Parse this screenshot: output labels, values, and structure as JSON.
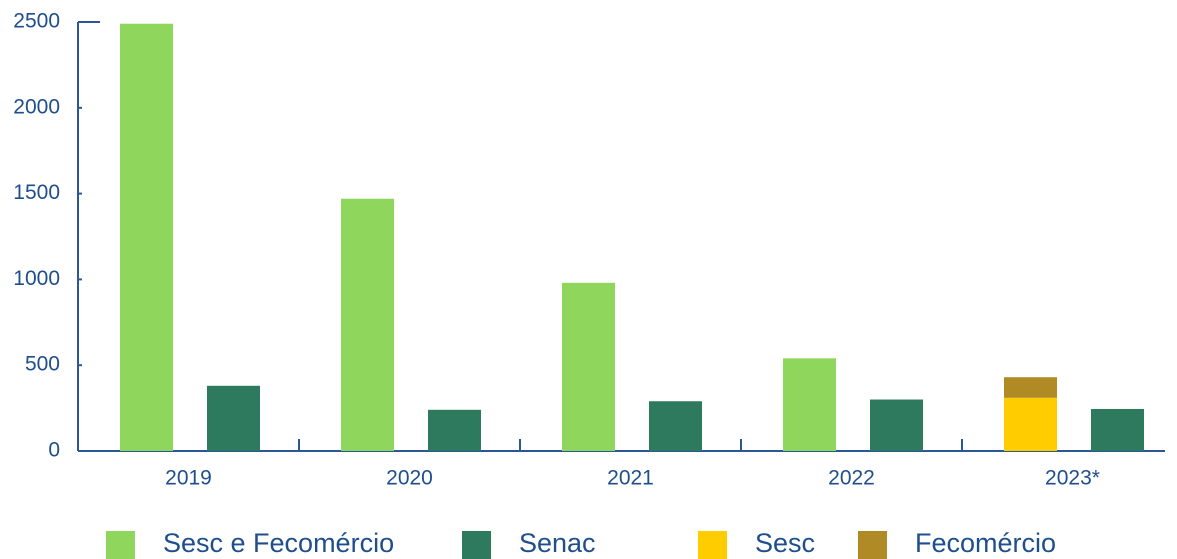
{
  "chart_data": {
    "type": "bar",
    "categories": [
      "2019",
      "2020",
      "2021",
      "2022",
      "2023*"
    ],
    "series": [
      {
        "name": "Sesc e Fecomércio",
        "color": "#8fd65c",
        "values": [
          2490,
          1470,
          980,
          540,
          null
        ]
      },
      {
        "name": "Senac",
        "color": "#2e7a5e",
        "values": [
          380,
          240,
          290,
          300,
          245
        ]
      },
      {
        "name": "Sesc",
        "color": "#ffcc00",
        "values": [
          null,
          null,
          null,
          null,
          310
        ]
      },
      {
        "name": "Fecomércio",
        "color": "#b08a25",
        "values": [
          null,
          null,
          null,
          null,
          120
        ]
      }
    ],
    "ylim": [
      0,
      2500
    ],
    "yticks": [
      0,
      500,
      1000,
      1500,
      2000,
      2500
    ],
    "grid": false
  }
}
